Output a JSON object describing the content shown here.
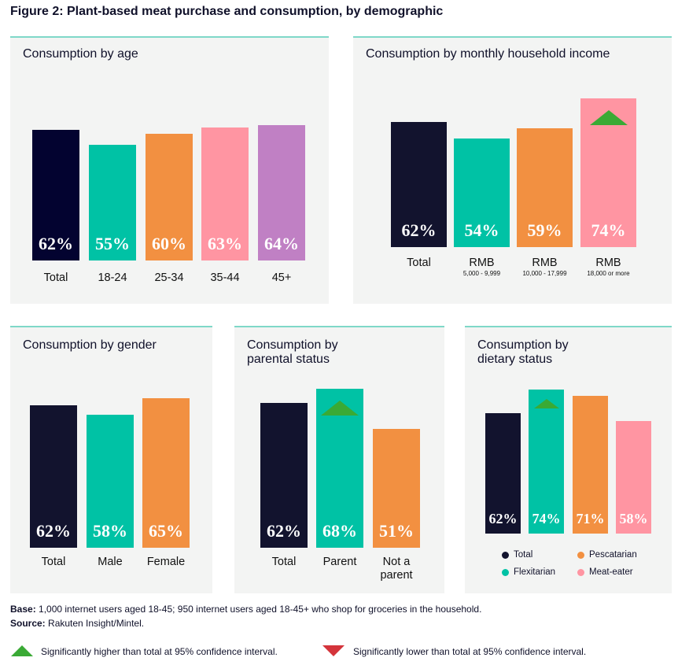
{
  "title": "Figure 2: Plant-based meat purchase and consumption, by demographic",
  "colors": {
    "total": "#0f1230",
    "teal": "#00c2a5",
    "orange": "#f29041",
    "pink": "#ff95a2",
    "purple": "#c080c4",
    "up": "#3aaa35",
    "down": "#d4343b"
  },
  "chart_data": [
    {
      "type": "bar",
      "title": "Consumption by age",
      "categories": [
        "Total",
        "18-24",
        "25-34",
        "35-44",
        "45+"
      ],
      "values": [
        62,
        55,
        60,
        63,
        64
      ],
      "labels": [
        "62%",
        "55%",
        "60%",
        "63%",
        "64%"
      ],
      "colors": [
        "#030330",
        "#00c2a5",
        "#f29041",
        "#ff95a2",
        "#c080c4"
      ],
      "significant": [
        null,
        null,
        null,
        null,
        null
      ]
    },
    {
      "type": "bar",
      "title": "Consumption by monthly household income",
      "categories": [
        "Total",
        "RMB",
        "RMB",
        "RMB"
      ],
      "subcategories": [
        "",
        "5,000 - 9,999",
        "10,000 - 17,999",
        "18,000 or more"
      ],
      "values": [
        62,
        54,
        59,
        74
      ],
      "labels": [
        "62%",
        "54%",
        "59%",
        "74%"
      ],
      "colors": [
        "#12132e",
        "#00c2a5",
        "#f29041",
        "#ff95a2"
      ],
      "significant": [
        null,
        null,
        null,
        "higher"
      ]
    },
    {
      "type": "bar",
      "title": "Consumption by gender",
      "categories": [
        "Total",
        "Male",
        "Female"
      ],
      "values": [
        62,
        58,
        65
      ],
      "labels": [
        "62%",
        "58%",
        "65%"
      ],
      "colors": [
        "#12132e",
        "#00c2a5",
        "#f29041"
      ],
      "significant": [
        null,
        null,
        null
      ]
    },
    {
      "type": "bar",
      "title": "Consumption by\nparental status",
      "categories": [
        "Total",
        "Parent",
        "Not a\nparent"
      ],
      "values": [
        62,
        68,
        51
      ],
      "labels": [
        "62%",
        "68%",
        "51%"
      ],
      "colors": [
        "#12132e",
        "#00c2a5",
        "#f29041"
      ],
      "significant": [
        null,
        "higher",
        null
      ]
    },
    {
      "type": "bar",
      "title": "Consumption by\ndietary status",
      "categories": [
        "Total",
        "Flexitarian",
        "Pescatarian",
        "Meat-eater"
      ],
      "values": [
        62,
        74,
        71,
        58
      ],
      "labels": [
        "62%",
        "74%",
        "71%",
        "58%"
      ],
      "colors": [
        "#12132e",
        "#00c2a5",
        "#f29041",
        "#ff95a2"
      ],
      "significant": [
        null,
        "higher",
        null,
        null
      ],
      "legend": [
        "Total",
        "Pescatarian",
        "Flexitarian",
        "Meat-eater"
      ],
      "legend_colors": [
        "#12132e",
        "#f29041",
        "#00c2a5",
        "#ff95a2"
      ]
    }
  ],
  "footer": {
    "base_label": "Base:",
    "base_text": " 1,000 internet users aged 18-45; 950 internet users aged 18-45+ who shop for groceries in the household.",
    "source_label": "Source:",
    "source_text": " Rakuten Insight/Mintel.",
    "higher": "Significantly higher than total at 95% confidence interval.",
    "lower": "Significantly lower than total at 95% confidence interval."
  }
}
